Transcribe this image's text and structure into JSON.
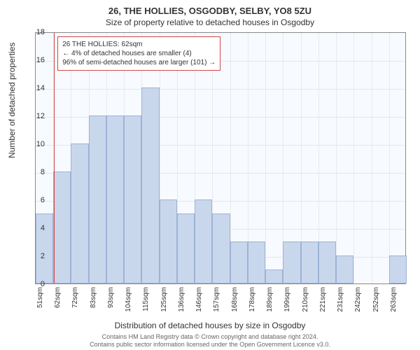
{
  "title_line1": "26, THE HOLLIES, OSGODBY, SELBY, YO8 5ZU",
  "title_line2": "Size of property relative to detached houses in Osgodby",
  "y_axis_label": "Number of detached properties",
  "x_axis_label": "Distribution of detached houses by size in Osgodby",
  "footer_line1": "Contains HM Land Registry data © Crown copyright and database right 2024.",
  "footer_line2": "Contains public sector information licensed under the Open Government Licence v3.0.",
  "callout": {
    "line1": "26 THE HOLLIES: 62sqm",
    "line2": "← 4% of detached houses are smaller (4)",
    "line3": "96% of semi-detached houses are larger (101) →"
  },
  "colors": {
    "bar_fill": "#c9d7ec",
    "bar_stroke": "#9db2d6",
    "marker": "#d04a4a",
    "grid": "#e6e6e6",
    "axis": "#888888",
    "plot_bg_tint": "#f7faff"
  },
  "chart": {
    "type": "histogram",
    "ylim": [
      0,
      18
    ],
    "ytick_step": 2,
    "marker_x": 62,
    "x_start": 51,
    "x_step": 10.6,
    "x_labels": [
      "51sqm",
      "62sqm",
      "72sqm",
      "83sqm",
      "93sqm",
      "104sqm",
      "115sqm",
      "125sqm",
      "136sqm",
      "146sqm",
      "157sqm",
      "168sqm",
      "178sqm",
      "189sqm",
      "199sqm",
      "210sqm",
      "221sqm",
      "231sqm",
      "242sqm",
      "252sqm",
      "263sqm"
    ],
    "values": [
      5,
      8,
      10,
      12,
      12,
      12,
      14,
      6,
      5,
      6,
      5,
      3,
      3,
      1,
      3,
      3,
      3,
      2,
      0,
      0,
      2
    ]
  }
}
